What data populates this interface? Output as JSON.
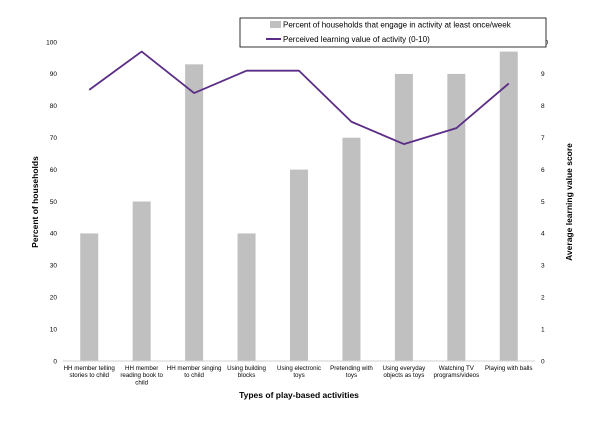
{
  "chart_data": {
    "type": "bar+line",
    "categories": [
      [
        "HH member telling",
        "stories to child"
      ],
      [
        "HH member",
        "reading book to",
        "child"
      ],
      [
        "HH member singing",
        "to child"
      ],
      [
        "Using building",
        "blocks"
      ],
      [
        "Using electronic",
        "toys"
      ],
      [
        "Pretending with",
        "toys"
      ],
      [
        "Using everyday",
        "objects as toys"
      ],
      [
        "Watching TV",
        "programs/videos"
      ],
      [
        "Playing with balls"
      ]
    ],
    "series": [
      {
        "name": "Percent of households that engage in activity at least once/week",
        "kind": "bar",
        "axis": "left",
        "color": "#c0c0c0",
        "values": [
          40,
          50,
          93,
          40,
          60,
          70,
          90,
          90,
          97
        ]
      },
      {
        "name": "Perceived learning value of activity (0-10)",
        "kind": "line",
        "axis": "right",
        "color": "#5b2d86",
        "values": [
          8.5,
          9.7,
          8.4,
          9.1,
          9.1,
          7.5,
          6.8,
          7.3,
          8.7
        ]
      }
    ],
    "xlabel": "Types of play-based activities",
    "ylabel": "Percent of households",
    "y2label": "Average learning value score",
    "ylim": [
      0,
      100
    ],
    "y2lim": [
      0,
      10
    ],
    "yticks": [
      "0",
      "10",
      "20",
      "30",
      "40",
      "50",
      "60",
      "70",
      "80",
      "90",
      "100"
    ],
    "y2ticks": [
      "0",
      "1",
      "2",
      "3",
      "4",
      "5",
      "6",
      "7",
      "8",
      "9",
      "10"
    ],
    "legend_position": "top-right",
    "grid": false
  }
}
